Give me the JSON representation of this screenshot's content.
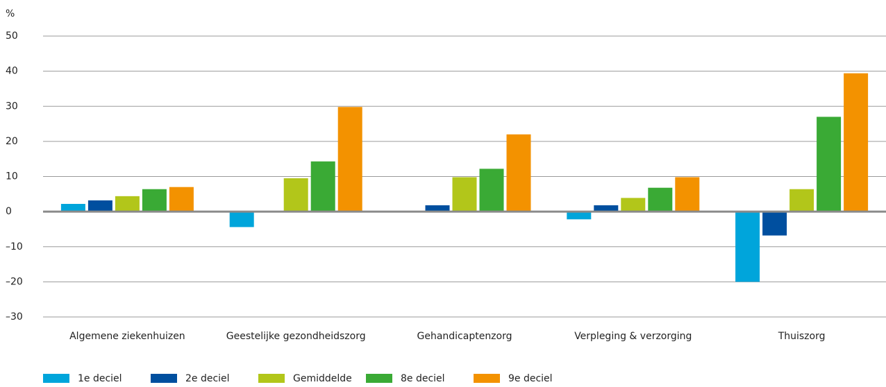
{
  "chart_data": {
    "type": "bar",
    "y_label": "%",
    "categories": [
      "Algemene ziekenhuizen",
      "Geestelijke gezondheidszorg",
      "Gehandicaptenzorg",
      "Verpleging & verzorging",
      "Thuiszorg"
    ],
    "series": [
      {
        "name": "1e deciel",
        "color": "#00a5db",
        "values": [
          2.2,
          -4.4,
          0,
          -2.2,
          -20
        ]
      },
      {
        "name": "2e deciel",
        "color": "#004f9f",
        "values": [
          3.2,
          0,
          1.8,
          1.8,
          -6.8
        ]
      },
      {
        "name": "Gemiddelde",
        "color": "#b2c61a",
        "values": [
          4.4,
          9.5,
          9.8,
          3.9,
          6.4
        ]
      },
      {
        "name": "8e deciel",
        "color": "#3aaa35",
        "values": [
          6.4,
          14.3,
          12.2,
          6.8,
          27.0
        ]
      },
      {
        "name": "9e deciel",
        "color": "#f39200",
        "values": [
          7.0,
          29.8,
          22.0,
          9.8,
          39.4
        ]
      }
    ],
    "ylim": [
      -30,
      50
    ],
    "yticks": [
      {
        "value": -30,
        "label": "–30"
      },
      {
        "value": -20,
        "label": "–20"
      },
      {
        "value": -10,
        "label": "–10"
      },
      0,
      10,
      20,
      30,
      40,
      50
    ],
    "grid": true,
    "legend": "bottom"
  }
}
